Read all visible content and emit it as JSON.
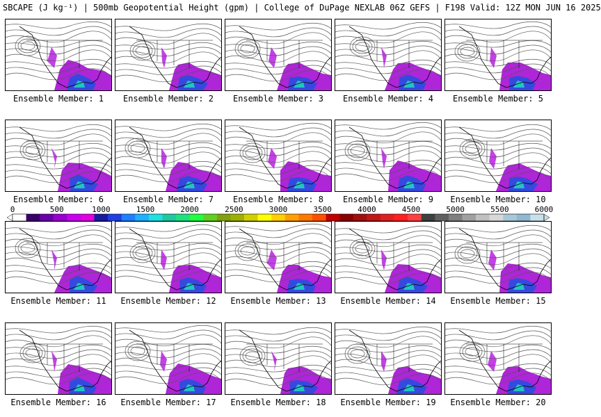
{
  "header": {
    "title": "SBCAPE (J kg⁻¹) | 500mb Geopotential Height (gpm) | College of DuPage NEXLAB 06Z GEFS | F198 Valid: 12Z MON JUN 16 2025"
  },
  "members": [
    {
      "label": "Ensemble Member: 1"
    },
    {
      "label": "Ensemble Member: 2"
    },
    {
      "label": "Ensemble Member: 3"
    },
    {
      "label": "Ensemble Member: 4"
    },
    {
      "label": "Ensemble Member: 5"
    },
    {
      "label": "Ensemble Member: 6"
    },
    {
      "label": "Ensemble Member: 7"
    },
    {
      "label": "Ensemble Member: 8"
    },
    {
      "label": "Ensemble Member: 9"
    },
    {
      "label": "Ensemble Member: 10"
    },
    {
      "label": "Ensemble Member: 11"
    },
    {
      "label": "Ensemble Member: 12"
    },
    {
      "label": "Ensemble Member: 13"
    },
    {
      "label": "Ensemble Member: 14"
    },
    {
      "label": "Ensemble Member: 15"
    },
    {
      "label": "Ensemble Member: 16"
    },
    {
      "label": "Ensemble Member: 17"
    },
    {
      "label": "Ensemble Member: 18"
    },
    {
      "label": "Ensemble Member: 19"
    },
    {
      "label": "Ensemble Member: 20"
    }
  ],
  "colorbar": {
    "min": 0,
    "max": 6000,
    "ticks": [
      "0",
      "500",
      "1000",
      "1500",
      "2000",
      "2500",
      "3000",
      "3500",
      "4000",
      "4500",
      "5000",
      "5500",
      "6000"
    ],
    "colors": [
      "#ffffff",
      "#3a006b",
      "#6a00a8",
      "#9a00d0",
      "#c800f0",
      "#e000e0",
      "#1a1aa0",
      "#2040e0",
      "#2080ff",
      "#20b0ff",
      "#20e0e0",
      "#20c8a0",
      "#20e080",
      "#20ff40",
      "#60d020",
      "#80a010",
      "#a0b000",
      "#d0d000",
      "#ffff00",
      "#ffd000",
      "#ffa000",
      "#ff7800",
      "#ff5000",
      "#c00000",
      "#8b0000",
      "#a01010",
      "#c01818",
      "#e02020",
      "#ff2020",
      "#ff4040",
      "#404040",
      "#606060",
      "#808080",
      "#a0a0a0",
      "#c0c0c0",
      "#d8d8d8",
      "#a8c8d8",
      "#90b8d0",
      "#c8e0ea"
    ]
  }
}
